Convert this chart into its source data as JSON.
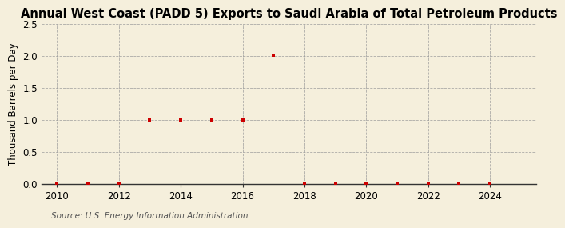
{
  "title": "Annual West Coast (PADD 5) Exports to Saudi Arabia of Total Petroleum Products",
  "ylabel": "Thousand Barrels per Day",
  "source": "Source: U.S. Energy Information Administration",
  "background_color": "#f5efdc",
  "plot_background_color": "#f5efdc",
  "marker_color": "#cc0000",
  "grid_color": "#999999",
  "spine_color": "#333333",
  "years": [
    2010,
    2011,
    2012,
    2013,
    2014,
    2015,
    2016,
    2017,
    2018,
    2019,
    2020,
    2021,
    2022,
    2023,
    2024
  ],
  "values": [
    0.0,
    0.0,
    0.0,
    1.0,
    1.0,
    1.0,
    1.0,
    2.01,
    0.0,
    0.0,
    0.0,
    0.0,
    0.0,
    0.0,
    0.0
  ],
  "xlim": [
    2009.5,
    2025.5
  ],
  "ylim": [
    0.0,
    2.5
  ],
  "yticks": [
    0.0,
    0.5,
    1.0,
    1.5,
    2.0,
    2.5
  ],
  "xticks": [
    2010,
    2012,
    2014,
    2016,
    2018,
    2020,
    2022,
    2024
  ],
  "title_fontsize": 10.5,
  "label_fontsize": 8.5,
  "tick_fontsize": 8.5,
  "source_fontsize": 7.5
}
